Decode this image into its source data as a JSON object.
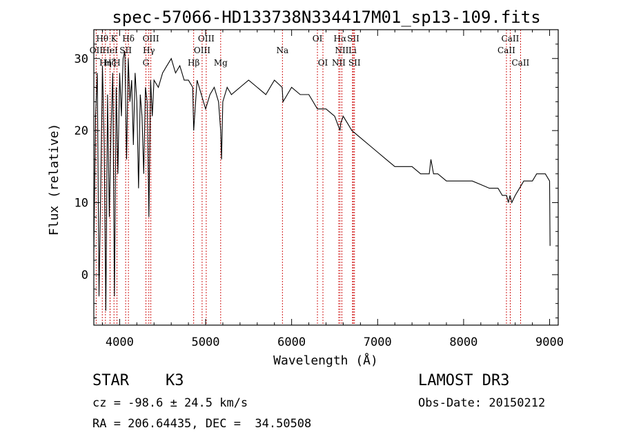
{
  "chart_data": {
    "type": "line",
    "title": "spec-57066-HD133738N334417M01_sp13-109.fits",
    "xlabel": "Wavelength (Å)",
    "ylabel": "Flux (relative)",
    "xlim": [
      3700,
      9100
    ],
    "ylim": [
      -7,
      34
    ],
    "xticks": [
      4000,
      5000,
      6000,
      7000,
      8000,
      9000
    ],
    "yticks": [
      0,
      10,
      20,
      30
    ],
    "series": [
      {
        "name": "flux",
        "x": [
          3700,
          3720,
          3740,
          3760,
          3780,
          3800,
          3820,
          3840,
          3860,
          3880,
          3900,
          3920,
          3940,
          3960,
          3980,
          4000,
          4020,
          4040,
          4060,
          4080,
          4100,
          4120,
          4140,
          4160,
          4180,
          4200,
          4220,
          4240,
          4260,
          4280,
          4300,
          4320,
          4340,
          4360,
          4380,
          4400,
          4450,
          4500,
          4550,
          4600,
          4650,
          4700,
          4750,
          4800,
          4850,
          4861,
          4900,
          4950,
          5000,
          5050,
          5100,
          5150,
          5175,
          5185,
          5200,
          5250,
          5300,
          5400,
          5500,
          5600,
          5700,
          5800,
          5890,
          5900,
          5950,
          6000,
          6100,
          6200,
          6250,
          6300,
          6400,
          6500,
          6563,
          6570,
          6600,
          6650,
          6700,
          6800,
          6900,
          7000,
          7100,
          7200,
          7300,
          7400,
          7500,
          7600,
          7620,
          7650,
          7700,
          7800,
          7900,
          8000,
          8100,
          8200,
          8300,
          8400,
          8450,
          8500,
          8520,
          8540,
          8560,
          8600,
          8650,
          8700,
          8750,
          8800,
          8850,
          8900,
          8950,
          9000,
          9005
        ],
        "values": [
          3,
          22,
          28,
          -3,
          12,
          29,
          18,
          -5,
          25,
          8,
          20,
          28,
          -3,
          26,
          14,
          28,
          22,
          30,
          31,
          16,
          30,
          24,
          27,
          18,
          28,
          24,
          12,
          25,
          22,
          14,
          26,
          24,
          8,
          27,
          22,
          27,
          26,
          28,
          29,
          30,
          28,
          29,
          27,
          27,
          26,
          20,
          27,
          25,
          23,
          25,
          26,
          24,
          20,
          16,
          24,
          26,
          25,
          26,
          27,
          26,
          25,
          27,
          26,
          24,
          25,
          26,
          25,
          25,
          24,
          23,
          23,
          22,
          20,
          21,
          22,
          21,
          20,
          19,
          18,
          17,
          16,
          15,
          15,
          15,
          14,
          14,
          16,
          14,
          14,
          13,
          13,
          13,
          13,
          12.5,
          12,
          12,
          11,
          11,
          10,
          11,
          10,
          11,
          12,
          13,
          13,
          13,
          14,
          14,
          14,
          13,
          4
        ]
      }
    ],
    "lines": [
      {
        "label": "Hθ",
        "x": 3798,
        "row": 1
      },
      {
        "label": "K",
        "x": 3934,
        "row": 1
      },
      {
        "label": "Hδ",
        "x": 4102,
        "row": 1
      },
      {
        "label": "OIII",
        "x": 4363,
        "row": 1
      },
      {
        "label": "OIII",
        "x": 5007,
        "row": 1
      },
      {
        "label": "OI",
        "x": 6300,
        "row": 1
      },
      {
        "label": "Hα",
        "x": 6563,
        "row": 1
      },
      {
        "label": "SII",
        "x": 6717,
        "row": 1
      },
      {
        "label": "CaII",
        "x": 8542,
        "row": 1
      },
      {
        "label": "OII",
        "x": 3727,
        "row": 2
      },
      {
        "label": "HeI",
        "x": 3889,
        "row": 2
      },
      {
        "label": "SII",
        "x": 4070,
        "row": 2
      },
      {
        "label": "Hγ",
        "x": 4340,
        "row": 2
      },
      {
        "label": "OIII",
        "x": 4959,
        "row": 2
      },
      {
        "label": "Na",
        "x": 5893,
        "row": 2
      },
      {
        "label": "NII",
        "x": 6584,
        "row": 2
      },
      {
        "label": "Li",
        "x": 6708,
        "row": 2
      },
      {
        "label": "CaII",
        "x": 8498,
        "row": 2
      },
      {
        "label": "Hη",
        "x": 3835,
        "row": 3
      },
      {
        "label": "Hζ",
        "x": 3889,
        "row": 3
      },
      {
        "label": "H",
        "x": 3969,
        "row": 3
      },
      {
        "label": "G",
        "x": 4305,
        "row": 3
      },
      {
        "label": "Hβ",
        "x": 4861,
        "row": 3
      },
      {
        "label": "Mg",
        "x": 5175,
        "row": 3
      },
      {
        "label": "OI",
        "x": 6364,
        "row": 3
      },
      {
        "label": "NII",
        "x": 6548,
        "row": 3
      },
      {
        "label": "SII",
        "x": 6731,
        "row": 3
      },
      {
        "label": "CaII",
        "x": 8662,
        "row": 3
      }
    ]
  },
  "info": {
    "object_class": "STAR",
    "subclass": "K3",
    "survey": "LAMOST DR3",
    "cz": "cz = -98.6 ± 24.5 km/s",
    "obs_date": "Obs-Date: 20150212",
    "coords": "RA = 206.64435, DEC =  34.50508"
  }
}
